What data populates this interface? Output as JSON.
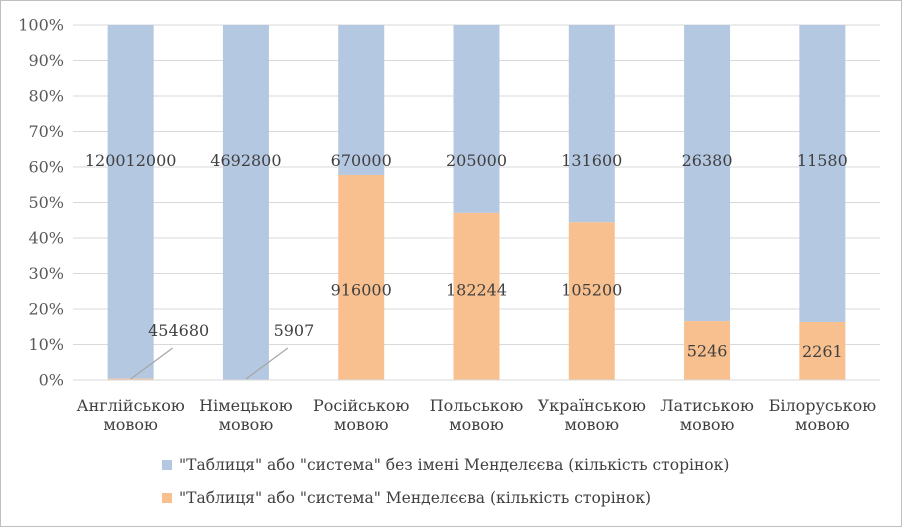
{
  "chart_data": {
    "type": "bar",
    "stacked": "percent",
    "categories": [
      [
        "Англійською",
        "мовою"
      ],
      [
        "Німецькою",
        "мовою"
      ],
      [
        "Російською",
        "мовою"
      ],
      [
        "Польською",
        "мовою"
      ],
      [
        "Українською",
        "мовою"
      ],
      [
        "Латиською",
        "мовою"
      ],
      [
        "Білоруською",
        "мовою"
      ]
    ],
    "series": [
      {
        "name": "\"Таблиця\" або \"система\" Менделєєва (кількість сторінок)",
        "values": [
          454680,
          5907,
          916000,
          182244,
          105200,
          5246,
          2261
        ],
        "color": "#f8c08e"
      },
      {
        "name": "\"Таблиця\" або \"система\" без імені Менделєєва (кількість сторінок)",
        "values": [
          120012000,
          4692800,
          670000,
          205000,
          131600,
          26380,
          11580
        ],
        "color": "#b5c8e2"
      }
    ],
    "legend_order": [
      1,
      0
    ],
    "yticks": [
      "0%",
      "10%",
      "20%",
      "30%",
      "40%",
      "50%",
      "60%",
      "70%",
      "80%",
      "90%",
      "100%"
    ],
    "ylim": [
      0,
      100
    ],
    "grid": true,
    "legend": "bottom",
    "title": "",
    "xlabel": "",
    "ylabel": ""
  }
}
